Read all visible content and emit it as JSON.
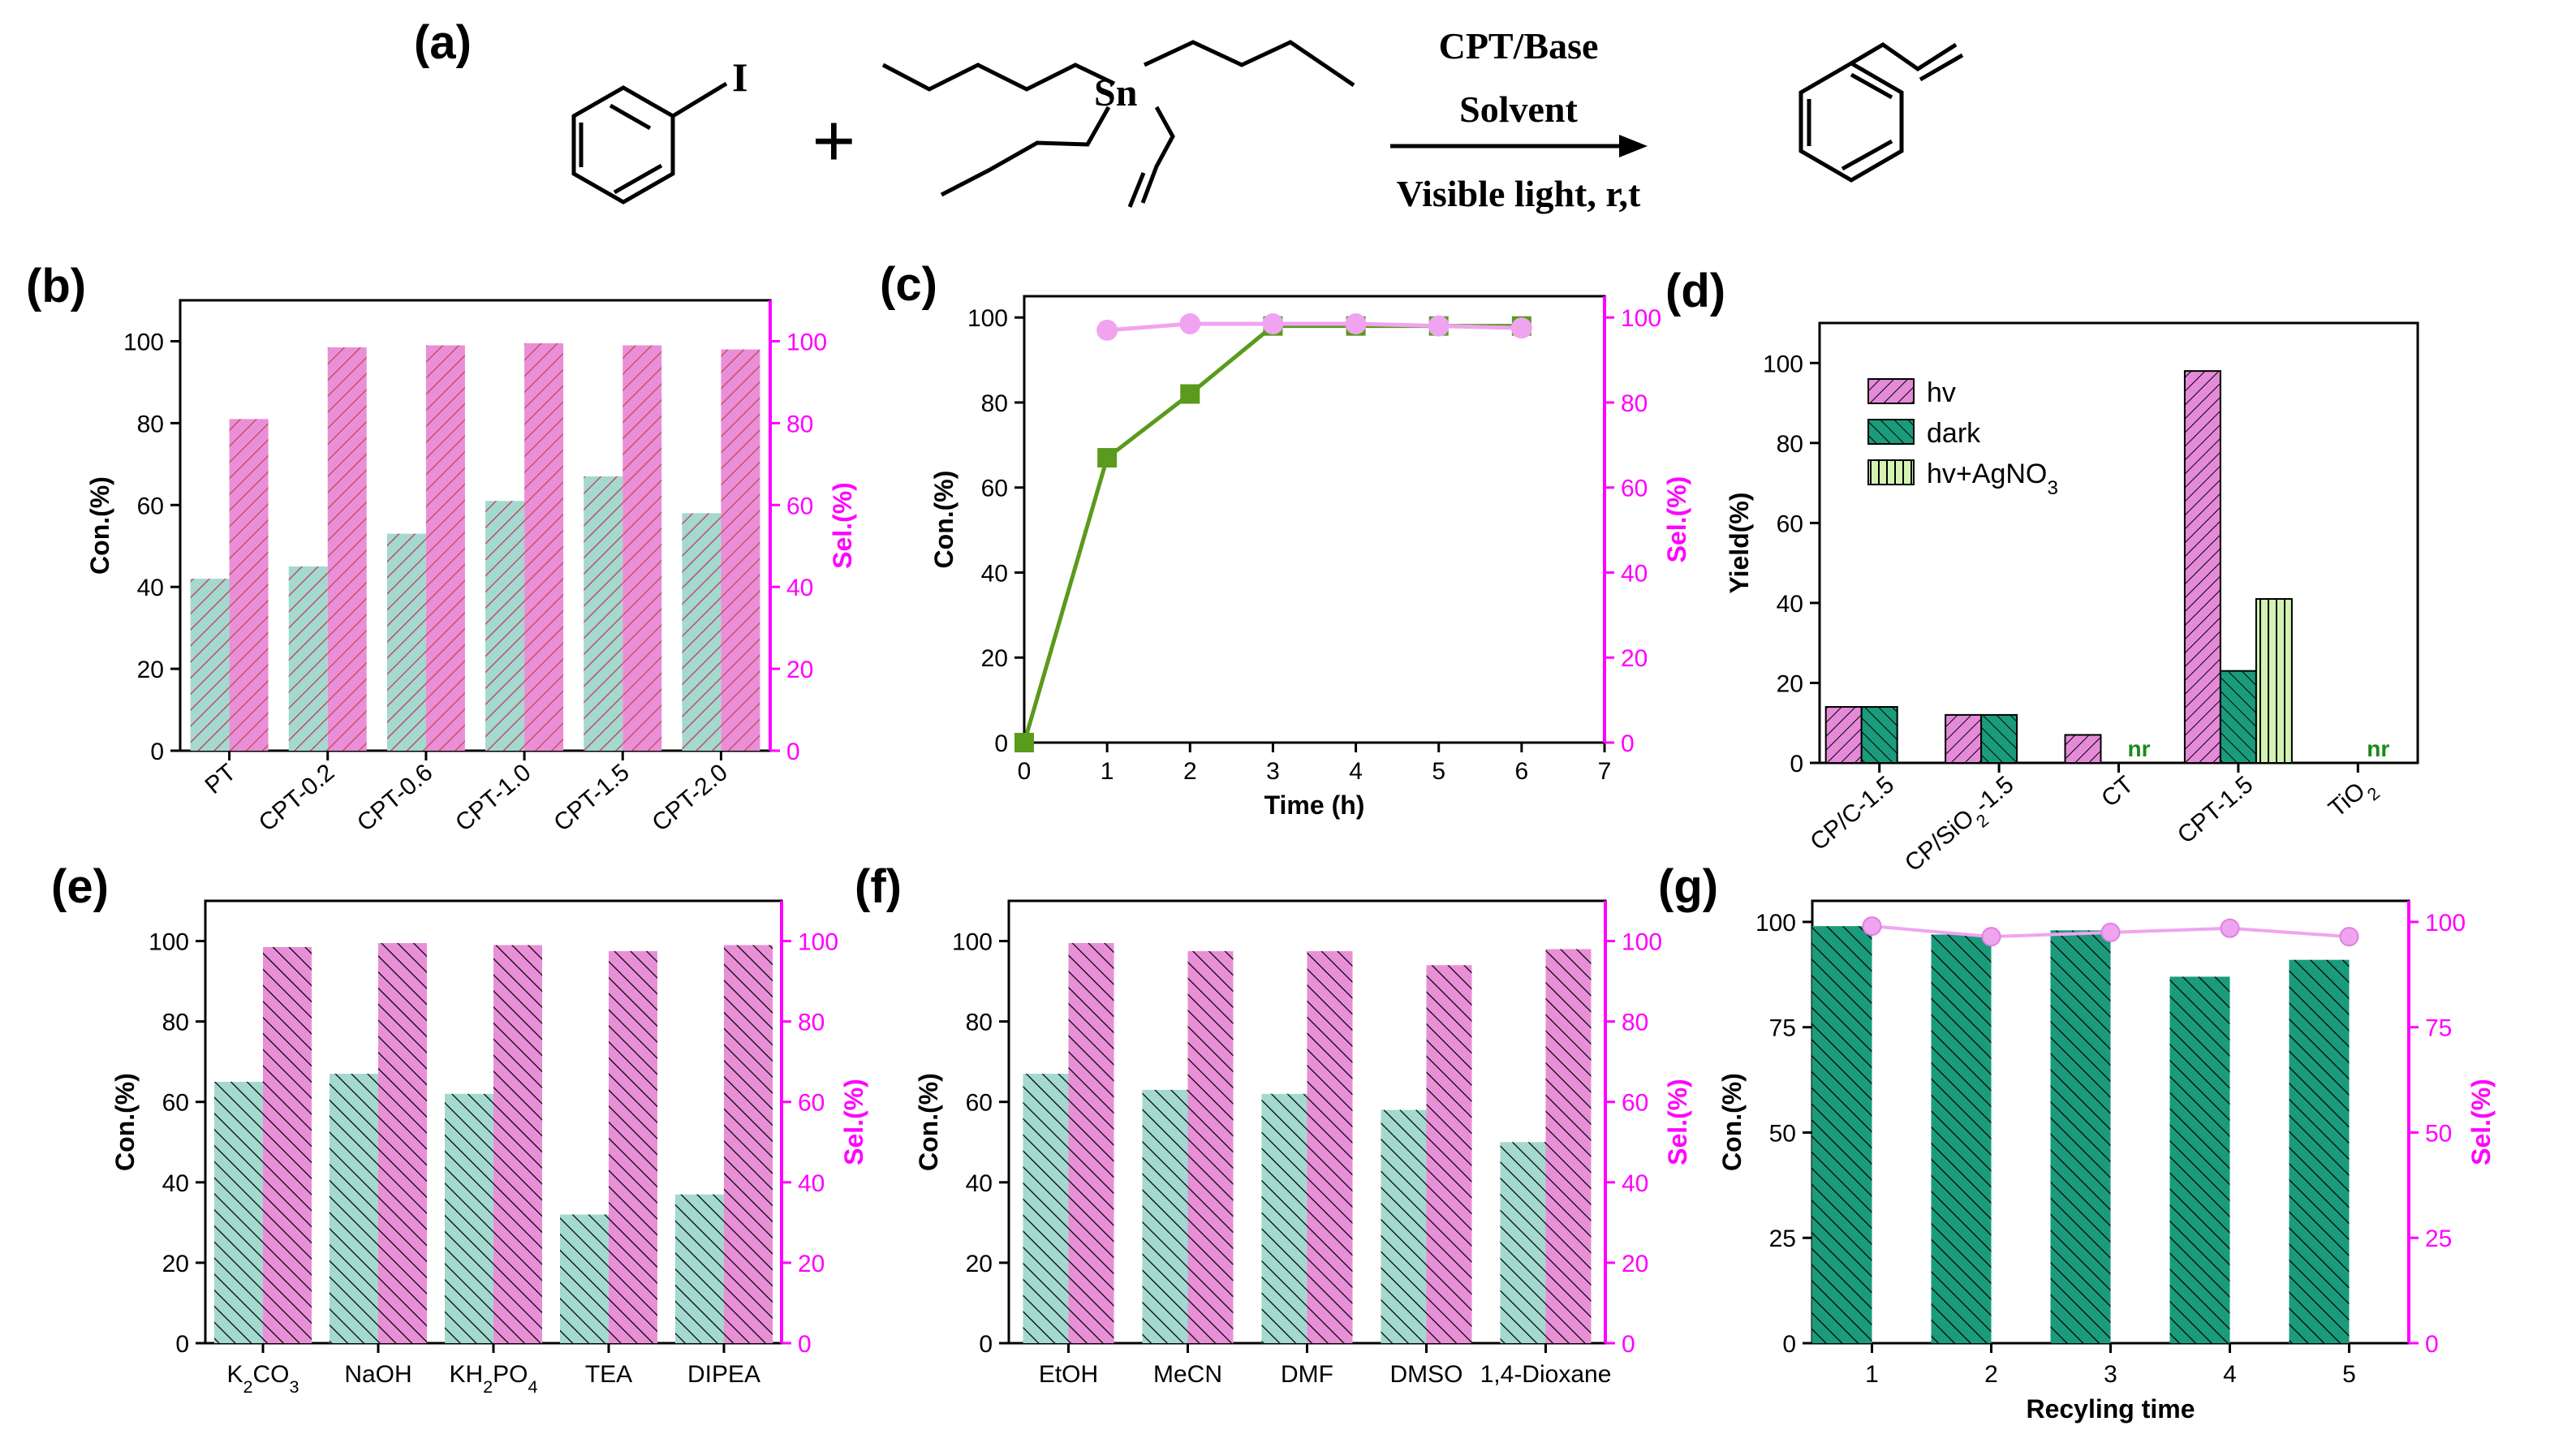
{
  "colors": {
    "teal_fill": "#a3d9cf",
    "teal_dark": "#1a9b7c",
    "pink_fill": "#e98fd8",
    "pink_dark": "#b04bb0",
    "magenta_axis": "#ff00ff",
    "green_line": "#5a9a1c",
    "light_green": "#d4f2b2",
    "nr_green": "#1a8a1a"
  },
  "scheme": {
    "panel_label": "(a)",
    "reagent_metal": "Sn",
    "halide": "I",
    "plus": "+",
    "cond1": "CPT/Base",
    "cond2": "Solvent",
    "cond3": "Visible light, r,t"
  },
  "chart_data": [
    {
      "id": "b",
      "panel_label": "(b)",
      "type": "bar",
      "categories": [
        "PT",
        "CPT-0.2",
        "CPT-0.6",
        "CPT-1.0",
        "CPT-1.5",
        "CPT-2.0"
      ],
      "series": [
        {
          "name": "Con.(%)",
          "axis": "left",
          "values": [
            42,
            45,
            53,
            61,
            67,
            58
          ]
        },
        {
          "name": "Sel.(%)",
          "axis": "right",
          "values": [
            81,
            98.5,
            99,
            99.5,
            99,
            98
          ]
        }
      ],
      "ylabel": "Con.(%)",
      "y2label": "Sel.(%)",
      "ylim": [
        0,
        110
      ],
      "yticks": [
        "0",
        "20",
        "40",
        "60",
        "80",
        "100"
      ],
      "y2ticks": [
        "0",
        "20",
        "40",
        "60",
        "80",
        "100"
      ]
    },
    {
      "id": "c",
      "panel_label": "(c)",
      "type": "line",
      "xlabel": "Time (h)",
      "ylabel": "Con.(%)",
      "y2label": "Sel.(%)",
      "xlim": [
        0,
        7
      ],
      "ylim": [
        0,
        105
      ],
      "xticks": [
        "0",
        "1",
        "2",
        "3",
        "4",
        "5",
        "6",
        "7"
      ],
      "yticks": [
        "0",
        "20",
        "40",
        "60",
        "80",
        "100"
      ],
      "y2ticks": [
        "0",
        "20",
        "40",
        "60",
        "80",
        "100"
      ],
      "series": [
        {
          "name": "Con.(%)",
          "axis": "left",
          "x": [
            0,
            1,
            2,
            3,
            4,
            5,
            6
          ],
          "y": [
            0,
            67,
            82,
            98,
            98,
            98,
            98
          ]
        },
        {
          "name": "Sel.(%)",
          "axis": "right",
          "x": [
            1,
            2,
            3,
            4,
            5,
            6
          ],
          "y": [
            97,
            98.5,
            98.5,
            98.5,
            98,
            97.5
          ]
        }
      ]
    },
    {
      "id": "d",
      "panel_label": "(d)",
      "type": "bar",
      "ylabel": "Yield(%)",
      "ylim": [
        0,
        110
      ],
      "yticks": [
        "0",
        "20",
        "40",
        "60",
        "80",
        "100"
      ],
      "categories": [
        "CP/C-1.5",
        "CP/SiO₂-1.5",
        "CT",
        "CPT-1.5",
        "TiO₂"
      ],
      "legend": [
        "hv",
        "dark",
        "hv+AgNO₃"
      ],
      "series": [
        {
          "name": "hv",
          "values": [
            14,
            12,
            7,
            98,
            null
          ]
        },
        {
          "name": "dark",
          "values": [
            14,
            12,
            null,
            23,
            null
          ]
        },
        {
          "name": "hv+AgNO₃",
          "values": [
            null,
            null,
            null,
            41,
            null
          ]
        }
      ],
      "annotations": [
        {
          "text": "nr",
          "category": "CT"
        },
        {
          "text": "nr",
          "category": "TiO₂"
        }
      ]
    },
    {
      "id": "e",
      "panel_label": "(e)",
      "type": "bar",
      "categories": [
        "K₂CO₃",
        "NaOH",
        "KH₂PO₄",
        "TEA",
        "DIPEA"
      ],
      "series": [
        {
          "name": "Con.(%)",
          "axis": "left",
          "values": [
            65,
            67,
            62,
            32,
            37
          ]
        },
        {
          "name": "Sel.(%)",
          "axis": "right",
          "values": [
            98.5,
            99.5,
            99,
            97.5,
            99
          ]
        }
      ],
      "ylabel": "Con.(%)",
      "y2label": "Sel.(%)",
      "ylim": [
        0,
        110
      ],
      "yticks": [
        "0",
        "20",
        "40",
        "60",
        "80",
        "100"
      ],
      "y2ticks": [
        "0",
        "20",
        "40",
        "60",
        "80",
        "100"
      ]
    },
    {
      "id": "f",
      "panel_label": "(f)",
      "type": "bar",
      "categories": [
        "EtOH",
        "MeCN",
        "DMF",
        "DMSO",
        "1,4-Dioxane"
      ],
      "series": [
        {
          "name": "Con.(%)",
          "axis": "left",
          "values": [
            67,
            63,
            62,
            58,
            50
          ]
        },
        {
          "name": "Sel.(%)",
          "axis": "right",
          "values": [
            99.5,
            97.5,
            97.5,
            94,
            98
          ]
        }
      ],
      "ylabel": "Con.(%)",
      "y2label": "Sel.(%)",
      "ylim": [
        0,
        110
      ],
      "yticks": [
        "0",
        "20",
        "40",
        "60",
        "80",
        "100"
      ],
      "y2ticks": [
        "0",
        "20",
        "40",
        "60",
        "80",
        "100"
      ]
    },
    {
      "id": "g",
      "panel_label": "(g)",
      "type": "bar",
      "xlabel": "Recyling time",
      "ylabel": "Con.(%)",
      "y2label": "Sel.(%)",
      "categories": [
        "1",
        "2",
        "3",
        "4",
        "5"
      ],
      "ylim": [
        0,
        105
      ],
      "yticks": [
        "0",
        "25",
        "50",
        "75",
        "100"
      ],
      "y2ticks": [
        "0",
        "25",
        "50",
        "75",
        "100"
      ],
      "series": [
        {
          "name": "Con.(%)",
          "axis": "left",
          "values": [
            99,
            97,
            98,
            87,
            91
          ]
        },
        {
          "name": "Sel.(%)",
          "axis": "right",
          "values": [
            99,
            96.5,
            97.5,
            98.5,
            96.5
          ]
        }
      ]
    }
  ]
}
